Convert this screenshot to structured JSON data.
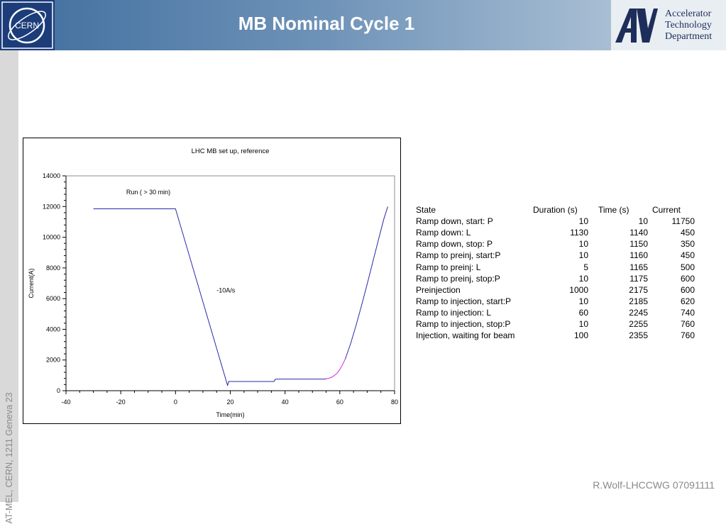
{
  "header": {
    "title": "MB Nominal Cycle 1",
    "cern_logo_text": "CERN",
    "dept_lines": [
      "Accelerator",
      "Technology",
      "Department"
    ]
  },
  "sidebar": {
    "text": "AT-MEL, CERN, 1211 Geneva 23"
  },
  "footer": {
    "text": "R.Wolf-LHCCWG 07091111"
  },
  "chart_data": {
    "type": "line",
    "title": "LHC MB set up, reference",
    "xlabel": "Time(min)",
    "ylabel": "Current(A)",
    "xlim": [
      -40,
      80
    ],
    "ylim": [
      0,
      14000
    ],
    "xticks": [
      -40,
      -20,
      0,
      20,
      40,
      60,
      80
    ],
    "yticks": [
      0,
      2000,
      4000,
      6000,
      8000,
      10000,
      12000,
      14000
    ],
    "grid": false,
    "annotations": [
      {
        "text": "Run ( > 30 min)",
        "x": -18,
        "y": 12800
      },
      {
        "text": "-10A/s",
        "x": 15,
        "y": 6400
      }
    ],
    "series": [
      {
        "color": "#2a2aa8",
        "points": [
          [
            -30,
            11850
          ],
          [
            0,
            11850
          ],
          [
            19,
            350
          ],
          [
            19.2,
            450
          ],
          [
            19.4,
            600
          ],
          [
            36,
            600
          ],
          [
            36.4,
            740
          ],
          [
            37,
            760
          ],
          [
            54.5,
            760
          ],
          [
            55,
            770
          ]
        ]
      },
      {
        "color": "#e020e0",
        "points": [
          [
            55,
            770
          ],
          [
            56,
            810
          ],
          [
            57,
            880
          ],
          [
            58,
            990
          ],
          [
            59,
            1140
          ],
          [
            60,
            1380
          ],
          [
            61,
            1700
          ],
          [
            62,
            2080
          ]
        ]
      },
      {
        "color": "#2a2aa8",
        "points": [
          [
            62,
            2080
          ],
          [
            64,
            3100
          ],
          [
            66,
            4300
          ],
          [
            68,
            5600
          ],
          [
            70,
            6950
          ],
          [
            72,
            8350
          ],
          [
            74,
            9750
          ],
          [
            76,
            11150
          ],
          [
            77.5,
            12000
          ]
        ]
      }
    ]
  },
  "table": {
    "headers": [
      "State",
      "Duration (s)",
      "Time (s)",
      "Current"
    ],
    "rows": [
      [
        "Ramp down, start: P",
        "10",
        "10",
        "11750"
      ],
      [
        "Ramp down: L",
        "1130",
        "1140",
        "450"
      ],
      [
        "Ramp down, stop: P",
        "10",
        "1150",
        "350"
      ],
      [
        "Ramp to preinj, start:P",
        "10",
        "1160",
        "450"
      ],
      [
        "Ramp to preinj: L",
        "5",
        "1165",
        "500"
      ],
      [
        "Ramp to preinj, stop:P",
        "10",
        "1175",
        "600"
      ],
      [
        "Preinjection",
        "1000",
        "2175",
        "600"
      ],
      [
        "Ramp to injection, start:P",
        "10",
        "2185",
        "620"
      ],
      [
        "Ramp to injection: L",
        "60",
        "2245",
        "740"
      ],
      [
        "Ramp to injection, stop:P",
        "10",
        "2255",
        "760"
      ],
      [
        "Injection, waiting for beam",
        "100",
        "2355",
        "760"
      ]
    ]
  }
}
